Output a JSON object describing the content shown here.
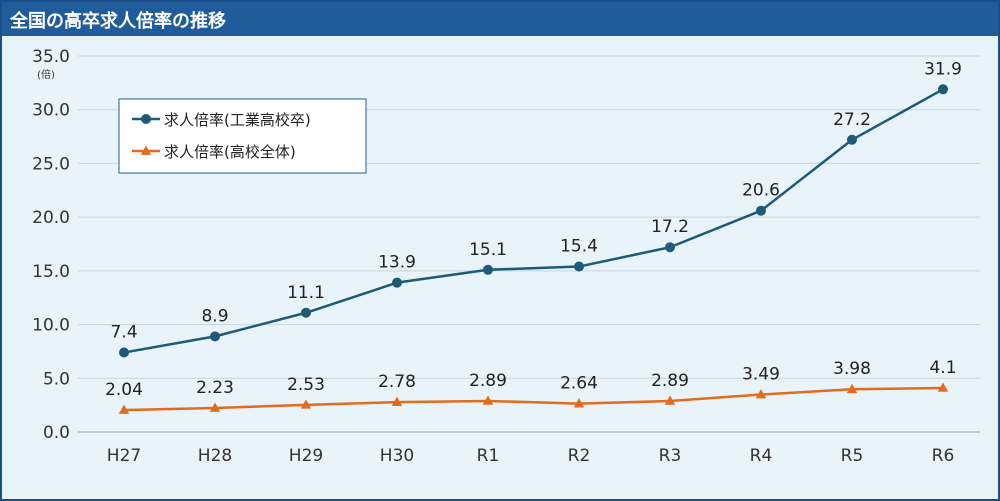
{
  "header": {
    "title": "全国の高卒求人倍率の推移"
  },
  "chart_data": {
    "type": "line",
    "title": "全国の高卒求人倍率の推移",
    "y_unit": "(倍)",
    "categories": [
      "H27",
      "H28",
      "H29",
      "H30",
      "R1",
      "R2",
      "R3",
      "R4",
      "R5",
      "R6"
    ],
    "ylim": [
      0,
      35
    ],
    "yticks": [
      "0.0",
      "5.0",
      "10.0",
      "15.0",
      "20.0",
      "25.0",
      "30.0",
      "35.0"
    ],
    "grid": true,
    "legend_position": "top-left",
    "series": [
      {
        "name": "求人倍率(工業高校卒)",
        "values": [
          7.4,
          8.9,
          11.1,
          13.9,
          15.1,
          15.4,
          17.2,
          20.6,
          27.2,
          31.9
        ],
        "labels": [
          "7.4",
          "8.9",
          "11.1",
          "13.9",
          "15.1",
          "15.4",
          "17.2",
          "20.6",
          "27.2",
          "31.9"
        ],
        "color": "#1c5a78",
        "marker": "circle"
      },
      {
        "name": "求人倍率(高校全体)",
        "values": [
          2.04,
          2.23,
          2.53,
          2.78,
          2.89,
          2.64,
          2.89,
          3.49,
          3.98,
          4.1
        ],
        "labels": [
          "2.04",
          "2.23",
          "2.53",
          "2.78",
          "2.89",
          "2.64",
          "2.89",
          "3.49",
          "3.98",
          "4.1"
        ],
        "color": "#e36c1c",
        "marker": "triangle"
      }
    ]
  }
}
